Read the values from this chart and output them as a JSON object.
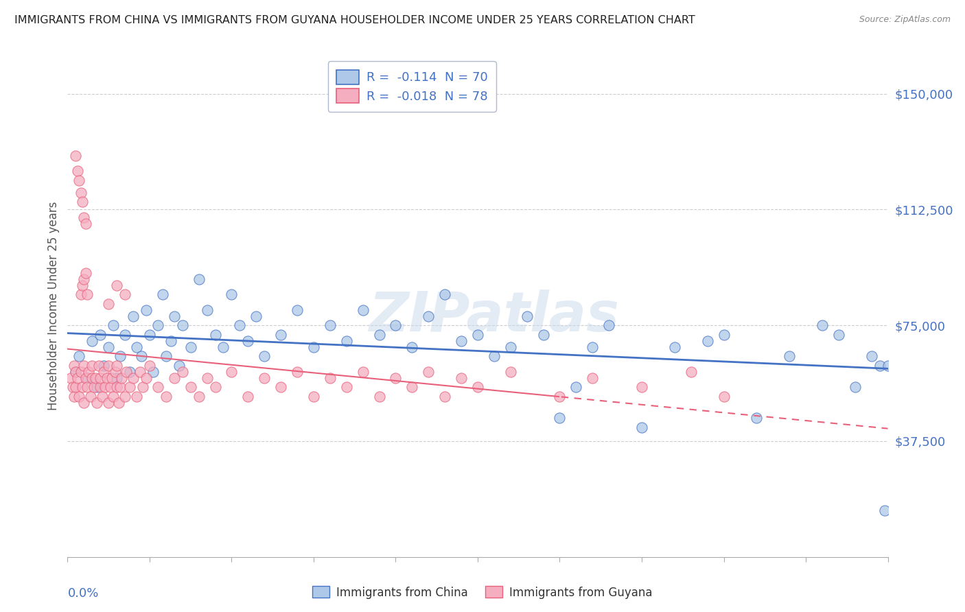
{
  "title": "IMMIGRANTS FROM CHINA VS IMMIGRANTS FROM GUYANA HOUSEHOLDER INCOME UNDER 25 YEARS CORRELATION CHART",
  "source": "Source: ZipAtlas.com",
  "ylabel": "Householder Income Under 25 years",
  "ytick_labels": [
    "$37,500",
    "$75,000",
    "$112,500",
    "$150,000"
  ],
  "ytick_values": [
    37500,
    75000,
    112500,
    150000
  ],
  "ylim": [
    0,
    162500
  ],
  "xlim": [
    0.0,
    0.5
  ],
  "china_R": "-0.114",
  "china_N": "70",
  "guyana_R": "-0.018",
  "guyana_N": "78",
  "china_color": "#adc8e8",
  "guyana_color": "#f5aec0",
  "china_line_color": "#4472c4",
  "guyana_line_color": "#e8607a",
  "background_color": "#ffffff",
  "grid_color": "#c8c8c8",
  "title_color": "#222222",
  "axis_label_color": "#4472c4",
  "legend_text_color": "#4472c4",
  "watermark": "ZIPatlas",
  "china_x": [
    0.005,
    0.007,
    0.012,
    0.015,
    0.018,
    0.02,
    0.022,
    0.025,
    0.028,
    0.03,
    0.032,
    0.035,
    0.038,
    0.04,
    0.042,
    0.045,
    0.048,
    0.05,
    0.052,
    0.055,
    0.058,
    0.06,
    0.063,
    0.065,
    0.068,
    0.07,
    0.075,
    0.08,
    0.085,
    0.09,
    0.095,
    0.1,
    0.105,
    0.11,
    0.115,
    0.12,
    0.13,
    0.14,
    0.15,
    0.16,
    0.17,
    0.18,
    0.19,
    0.2,
    0.21,
    0.22,
    0.23,
    0.24,
    0.25,
    0.26,
    0.27,
    0.28,
    0.29,
    0.3,
    0.31,
    0.32,
    0.33,
    0.35,
    0.37,
    0.39,
    0.4,
    0.42,
    0.44,
    0.46,
    0.47,
    0.48,
    0.49,
    0.495,
    0.498,
    0.5
  ],
  "china_y": [
    60000,
    65000,
    58000,
    70000,
    55000,
    72000,
    62000,
    68000,
    75000,
    58000,
    65000,
    72000,
    60000,
    78000,
    68000,
    65000,
    80000,
    72000,
    60000,
    75000,
    85000,
    65000,
    70000,
    78000,
    62000,
    75000,
    68000,
    90000,
    80000,
    72000,
    68000,
    85000,
    75000,
    70000,
    78000,
    65000,
    72000,
    80000,
    68000,
    75000,
    70000,
    80000,
    72000,
    75000,
    68000,
    78000,
    85000,
    70000,
    72000,
    65000,
    68000,
    78000,
    72000,
    45000,
    55000,
    68000,
    75000,
    42000,
    68000,
    70000,
    72000,
    45000,
    65000,
    75000,
    72000,
    55000,
    65000,
    62000,
    15000,
    62000
  ],
  "guyana_x": [
    0.002,
    0.003,
    0.004,
    0.004,
    0.005,
    0.005,
    0.006,
    0.007,
    0.008,
    0.009,
    0.01,
    0.01,
    0.011,
    0.012,
    0.013,
    0.014,
    0.015,
    0.015,
    0.016,
    0.017,
    0.018,
    0.019,
    0.02,
    0.02,
    0.021,
    0.022,
    0.023,
    0.024,
    0.025,
    0.025,
    0.026,
    0.027,
    0.028,
    0.029,
    0.03,
    0.03,
    0.031,
    0.032,
    0.033,
    0.035,
    0.036,
    0.038,
    0.04,
    0.042,
    0.044,
    0.046,
    0.048,
    0.05,
    0.055,
    0.06,
    0.065,
    0.07,
    0.075,
    0.08,
    0.085,
    0.09,
    0.1,
    0.11,
    0.12,
    0.13,
    0.14,
    0.15,
    0.16,
    0.17,
    0.18,
    0.19,
    0.2,
    0.21,
    0.22,
    0.23,
    0.24,
    0.25,
    0.27,
    0.3,
    0.32,
    0.35,
    0.38,
    0.4
  ],
  "guyana_y": [
    58000,
    55000,
    62000,
    52000,
    60000,
    55000,
    58000,
    52000,
    60000,
    55000,
    62000,
    50000,
    58000,
    55000,
    60000,
    52000,
    58000,
    62000,
    55000,
    58000,
    50000,
    62000,
    55000,
    58000,
    52000,
    60000,
    55000,
    58000,
    62000,
    50000,
    55000,
    58000,
    52000,
    60000,
    55000,
    62000,
    50000,
    55000,
    58000,
    52000,
    60000,
    55000,
    58000,
    52000,
    60000,
    55000,
    58000,
    62000,
    55000,
    52000,
    58000,
    60000,
    55000,
    52000,
    58000,
    55000,
    60000,
    52000,
    58000,
    55000,
    60000,
    52000,
    58000,
    55000,
    60000,
    52000,
    58000,
    55000,
    60000,
    52000,
    58000,
    55000,
    60000,
    52000,
    58000,
    55000,
    60000,
    52000
  ],
  "guyana_high_y": [
    130000,
    125000,
    122000,
    118000,
    115000,
    110000,
    108000
  ],
  "guyana_high_x": [
    0.005,
    0.006,
    0.007,
    0.008,
    0.009,
    0.01,
    0.011
  ],
  "guyana_med_y": [
    85000,
    88000,
    90000,
    92000,
    85000,
    82000,
    88000,
    85000
  ],
  "guyana_med_x": [
    0.008,
    0.009,
    0.01,
    0.011,
    0.012,
    0.025,
    0.03,
    0.035
  ]
}
